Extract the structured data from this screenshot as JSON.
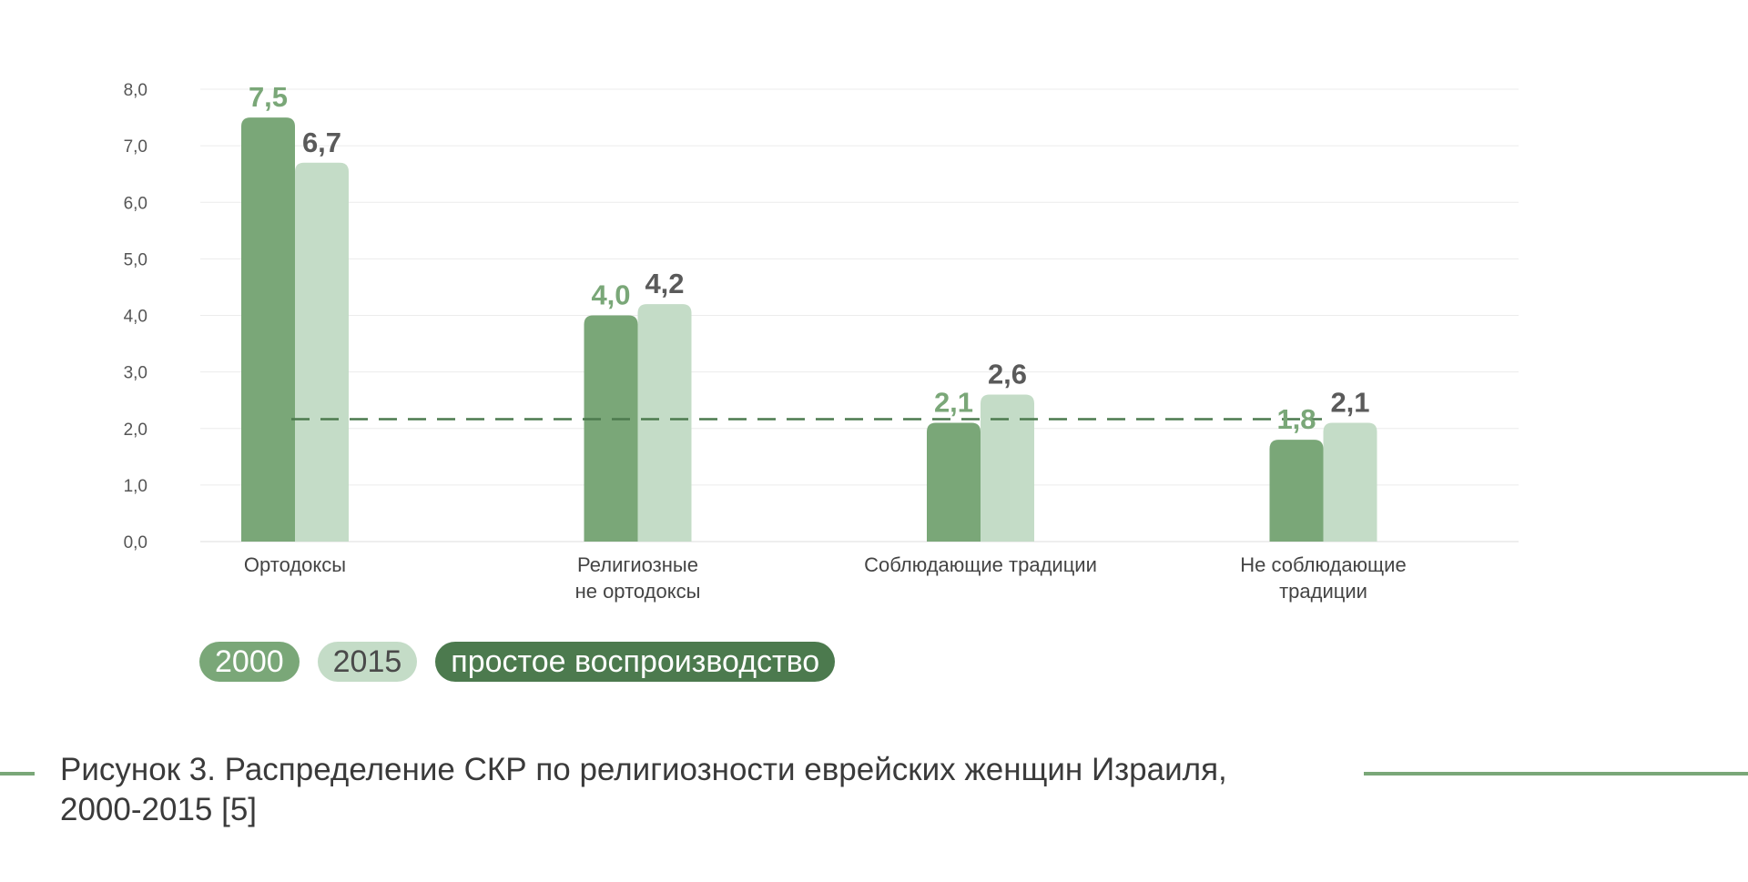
{
  "chart_data": {
    "type": "bar",
    "categories": [
      "Ортодоксы",
      "Религиозные не ортодоксы",
      "Соблюдающие традиции",
      "Не соблюдающие традиции"
    ],
    "category_lines": [
      [
        "Ортодоксы"
      ],
      [
        "Религиозные",
        "не ортодоксы"
      ],
      [
        "Соблюдающие традиции"
      ],
      [
        "Не соблюдающие",
        "традиции"
      ]
    ],
    "series": [
      {
        "name": "2000",
        "values": [
          7.5,
          4.0,
          2.1,
          1.8
        ],
        "labels": [
          "7,5",
          "4,0",
          "2,1",
          "1,8"
        ],
        "color": "#7aa778",
        "label_color": "#7aa778"
      },
      {
        "name": "2015",
        "values": [
          6.7,
          4.2,
          2.6,
          2.1
        ],
        "labels": [
          "6,7",
          "4,2",
          "2,6",
          "2,1"
        ],
        "color": "#c4dcc7",
        "label_color": "#5a5a5a"
      }
    ],
    "reference_line": {
      "name": "простое воспроизводство",
      "value": 2.1,
      "color": "#4c7a4e",
      "style": "dashed"
    },
    "ylim": [
      0,
      8
    ],
    "yticks": [
      "0,0",
      "1,0",
      "2,0",
      "3,0",
      "4,0",
      "5,0",
      "6,0",
      "7,0",
      "8,0"
    ],
    "grid": true,
    "legend_position": "bottom-left"
  },
  "legend": {
    "item_2000": "2000",
    "item_2015": "2015",
    "item_reference": "простое воспроизводство"
  },
  "caption": {
    "line1": "Рисунок 3. Распределение СКР по религиозности еврейских женщин Израиля,",
    "line2": "2000-2015 [5]"
  }
}
